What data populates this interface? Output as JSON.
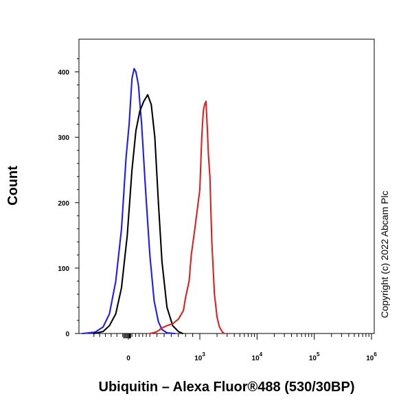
{
  "chart_data": {
    "type": "line",
    "xlabel": "Ubiquitin – Alexa Fluor®488 (530/30BP)",
    "ylabel": "Count",
    "x_scale": "biexponential",
    "x_ticks": [
      {
        "value": 0,
        "label": "0",
        "sup": ""
      },
      {
        "value": 1000,
        "label": "10",
        "sup": "3"
      },
      {
        "value": 10000,
        "label": "10",
        "sup": "4"
      },
      {
        "value": 100000,
        "label": "10",
        "sup": "5"
      },
      {
        "value": 1000000,
        "label": "10",
        "sup": "6"
      }
    ],
    "y_ticks": [
      0,
      100,
      200,
      300,
      400
    ],
    "ylim": [
      0,
      450
    ],
    "grid": false,
    "legend": "none",
    "copyright": "Copyright (c) 2022 Abcam Plc",
    "series": [
      {
        "color": "#1a1aff",
        "points": [
          [
            -400,
            0
          ],
          [
            -290,
            2
          ],
          [
            -220,
            10
          ],
          [
            -165,
            30
          ],
          [
            -110,
            80
          ],
          [
            -60,
            160
          ],
          [
            -20,
            270
          ],
          [
            10,
            320
          ],
          [
            50,
            390
          ],
          [
            80,
            405
          ],
          [
            105,
            400
          ],
          [
            140,
            380
          ],
          [
            185,
            320
          ],
          [
            240,
            220
          ],
          [
            300,
            120
          ],
          [
            360,
            50
          ],
          [
            420,
            18
          ],
          [
            470,
            6
          ],
          [
            540,
            1
          ],
          [
            650,
            0
          ]
        ]
      },
      {
        "color": "#000000",
        "points": [
          [
            -300,
            0
          ],
          [
            -220,
            3
          ],
          [
            -165,
            12
          ],
          [
            -110,
            30
          ],
          [
            -60,
            70
          ],
          [
            -10,
            150
          ],
          [
            50,
            250
          ],
          [
            105,
            310
          ],
          [
            160,
            340
          ],
          [
            215,
            355
          ],
          [
            270,
            365
          ],
          [
            320,
            350
          ],
          [
            370,
            300
          ],
          [
            420,
            200
          ],
          [
            470,
            110
          ],
          [
            540,
            40
          ],
          [
            620,
            12
          ],
          [
            700,
            3
          ],
          [
            760,
            0
          ]
        ]
      },
      {
        "color": "#e02020",
        "points": [
          [
            300,
            0
          ],
          [
            380,
            2
          ],
          [
            430,
            5
          ],
          [
            460,
            8
          ],
          [
            540,
            12
          ],
          [
            620,
            15
          ],
          [
            700,
            22
          ],
          [
            770,
            35
          ],
          [
            800,
            55
          ],
          [
            850,
            80
          ],
          [
            880,
            120
          ],
          [
            930,
            160
          ],
          [
            1000,
            220
          ],
          [
            1080,
            300
          ],
          [
            1150,
            340
          ],
          [
            1210,
            350
          ],
          [
            1280,
            355
          ],
          [
            1340,
            320
          ],
          [
            1420,
            270
          ],
          [
            1500,
            240
          ],
          [
            1620,
            140
          ],
          [
            1800,
            60
          ],
          [
            2000,
            25
          ],
          [
            2200,
            10
          ],
          [
            2450,
            3
          ],
          [
            2650,
            0
          ]
        ]
      }
    ]
  }
}
